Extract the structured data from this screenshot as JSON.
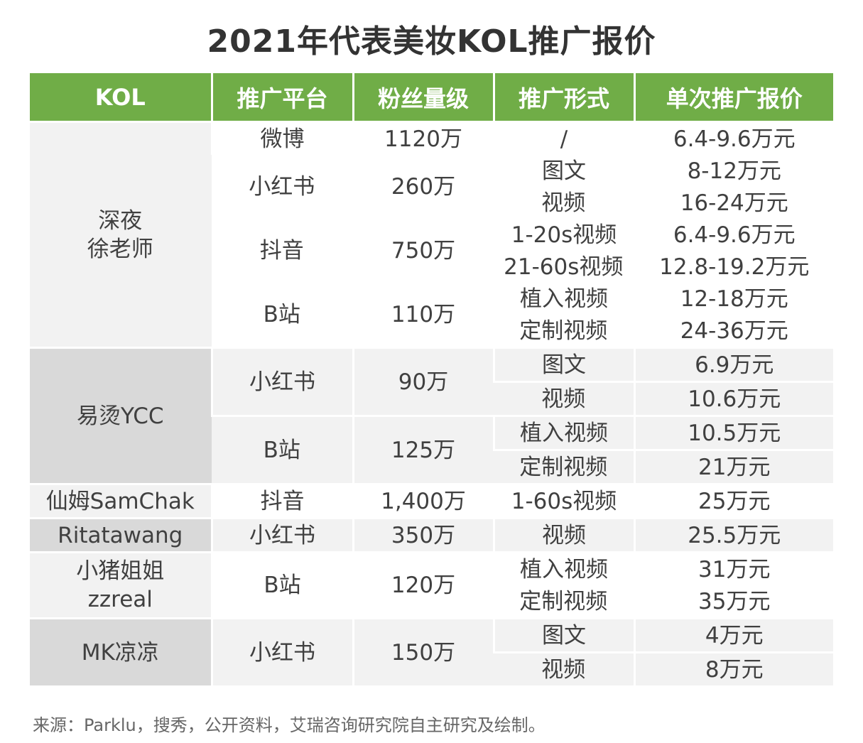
{
  "title": "2021年代表美妆KOL推广报价",
  "headers": [
    "KOL",
    "推广平台",
    "粉丝量级",
    "推广形式",
    "单次推广报价"
  ],
  "groups": [
    {
      "kol": [
        "深夜",
        "徐老师"
      ],
      "style": "white",
      "platforms": [
        {
          "platform": "微博",
          "fans": "1120万",
          "items": [
            {
              "form": "/",
              "price": "6.4-9.6万元"
            }
          ]
        },
        {
          "platform": "小红书",
          "fans": "260万",
          "items": [
            {
              "form": "图文",
              "price": "8-12万元"
            },
            {
              "form": "视频",
              "price": "16-24万元"
            }
          ]
        },
        {
          "platform": "抖音",
          "fans": "750万",
          "items": [
            {
              "form": "1-20s视频",
              "price": "6.4-9.6万元"
            },
            {
              "form": "21-60s视频",
              "price": "12.8-19.2万元"
            }
          ]
        },
        {
          "platform": "B站",
          "fans": "110万",
          "items": [
            {
              "form": "植入视频",
              "price": "12-18万元"
            },
            {
              "form": "定制视频",
              "price": "24-36万元"
            }
          ]
        }
      ]
    },
    {
      "kol": [
        "易烫YCC"
      ],
      "style": "gray",
      "platforms": [
        {
          "platform": "小红书",
          "fans": "90万",
          "items": [
            {
              "form": "图文",
              "price": "6.9万元"
            },
            {
              "form": "视频",
              "price": "10.6万元"
            }
          ]
        },
        {
          "platform": "B站",
          "fans": "125万",
          "items": [
            {
              "form": "植入视频",
              "price": "10.5万元"
            },
            {
              "form": "定制视频",
              "price": "21万元"
            }
          ]
        }
      ]
    },
    {
      "kol": [
        "仙姆SamChak"
      ],
      "style": "white",
      "platforms": [
        {
          "platform": "抖音",
          "fans": "1,400万",
          "items": [
            {
              "form": "1-60s视频",
              "price": "25万元"
            }
          ]
        }
      ]
    },
    {
      "kol": [
        "Ritatawang"
      ],
      "style": "gray",
      "platforms": [
        {
          "platform": "小红书",
          "fans": "350万",
          "items": [
            {
              "form": "视频",
              "price": "25.5万元"
            }
          ]
        }
      ]
    },
    {
      "kol": [
        "小猪姐姐",
        "zzreal"
      ],
      "style": "white",
      "platforms": [
        {
          "platform": "B站",
          "fans": "120万",
          "items": [
            {
              "form": "植入视频",
              "price": "31万元"
            },
            {
              "form": "定制视频",
              "price": "35万元"
            }
          ]
        }
      ]
    },
    {
      "kol": [
        "MK凉凉"
      ],
      "style": "gray",
      "platforms": [
        {
          "platform": "小红书",
          "fans": "150万",
          "items": [
            {
              "form": "图文",
              "price": "4万元"
            },
            {
              "form": "视频",
              "price": "8万元"
            }
          ]
        }
      ]
    }
  ],
  "source": "来源：Parklu，搜秀，公开资料，艾瑞咨询研究院自主研究及绘制。",
  "chart_data": {
    "type": "table",
    "title": "2021年代表美妆KOL推广报价",
    "columns": [
      "KOL",
      "推广平台",
      "粉丝量级",
      "推广形式",
      "单次推广报价"
    ]
  }
}
